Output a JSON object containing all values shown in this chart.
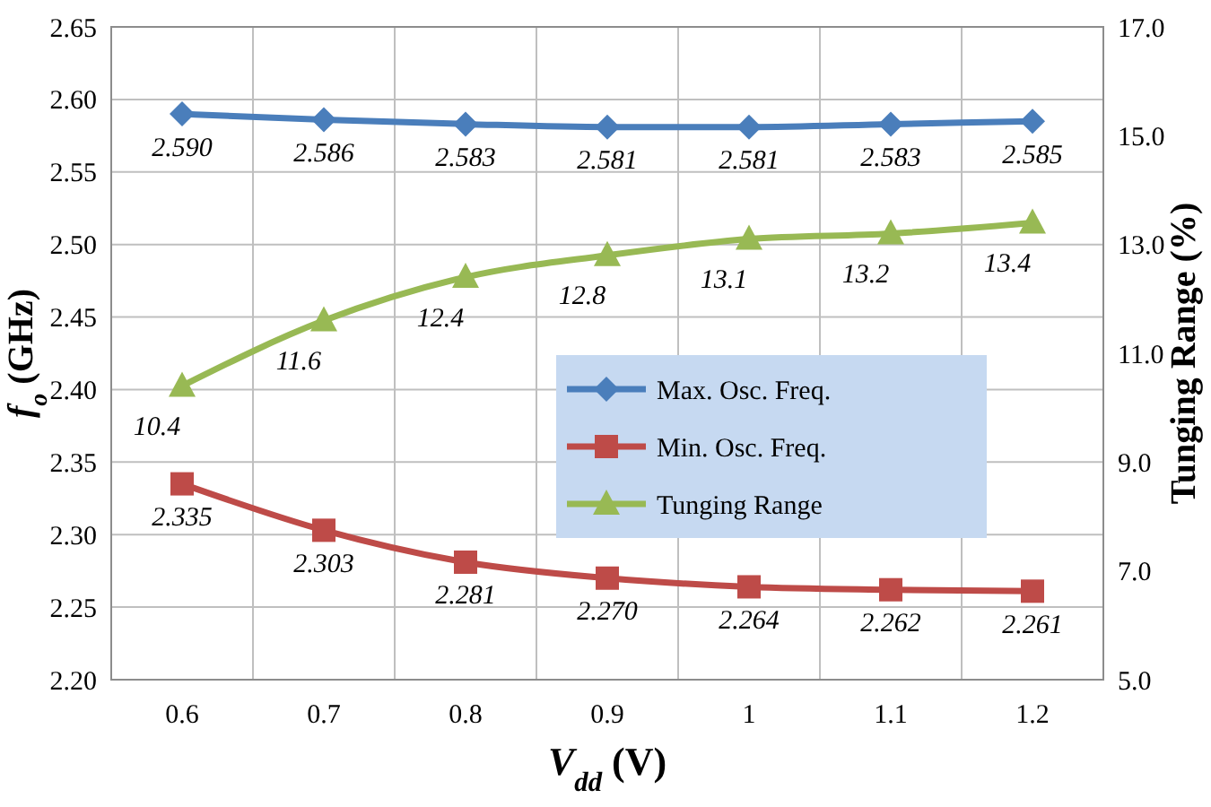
{
  "chart_data": {
    "type": "line",
    "xlabel": "V$_{dd}$ (V)",
    "ylabel": "f$_{o}$ (GHz)",
    "y2label": "Tunging Range (%)",
    "categories": [
      "0.6",
      "0.7",
      "0.8",
      "0.9",
      "1",
      "1.1",
      "1.2"
    ],
    "series": [
      {
        "name": "Max. Osc. Freq.",
        "color": "#4a7ebb",
        "marker": "diamond",
        "values": [
          2.59,
          2.586,
          2.583,
          2.581,
          2.581,
          2.583,
          2.585
        ],
        "value_labels": [
          "2.590",
          "2.586",
          "2.583",
          "2.581",
          "2.581",
          "2.583",
          "2.585"
        ]
      },
      {
        "name": "Min. Osc. Freq.",
        "color": "#be4b48",
        "marker": "square",
        "values": [
          2.335,
          2.303,
          2.281,
          2.27,
          2.264,
          2.262,
          2.261
        ],
        "value_labels": [
          "2.335",
          "2.303",
          "2.281",
          "2.270",
          "2.264",
          "2.262",
          "2.261"
        ]
      },
      {
        "name": "Tunging Range",
        "color": "#98b954",
        "marker": "triangle",
        "axis": "y2",
        "values": [
          10.4,
          11.6,
          12.4,
          12.8,
          13.1,
          13.2,
          13.4
        ],
        "value_labels": [
          "10.4",
          "11.6",
          "12.4",
          "12.8",
          "13.1",
          "13.2",
          "13.4"
        ]
      }
    ],
    "ylim": [
      2.2,
      2.65
    ],
    "yticks": [
      {
        "value": 2.2,
        "label": "2.20"
      },
      {
        "value": 2.25,
        "label": "2.25"
      },
      {
        "value": 2.3,
        "label": "2.30"
      },
      {
        "value": 2.35,
        "label": "2.35"
      },
      {
        "value": 2.4,
        "label": "2.40"
      },
      {
        "value": 2.45,
        "label": "2.45"
      },
      {
        "value": 2.5,
        "label": "2.50"
      },
      {
        "value": 2.55,
        "label": "2.55"
      },
      {
        "value": 2.6,
        "label": "2.60"
      },
      {
        "value": 2.65,
        "label": "2.65"
      }
    ],
    "y2lim": [
      5,
      17
    ],
    "y2ticks": [
      {
        "value": 5,
        "label": "5.0"
      },
      {
        "value": 7,
        "label": "7.0"
      },
      {
        "value": 9,
        "label": "9.0"
      },
      {
        "value": 11,
        "label": "11.0"
      },
      {
        "value": 13,
        "label": "13.0"
      },
      {
        "value": 15,
        "label": "15.0"
      },
      {
        "value": 17,
        "label": "17.0"
      }
    ],
    "grid": true,
    "legend": "center right",
    "line_style": "solid"
  }
}
